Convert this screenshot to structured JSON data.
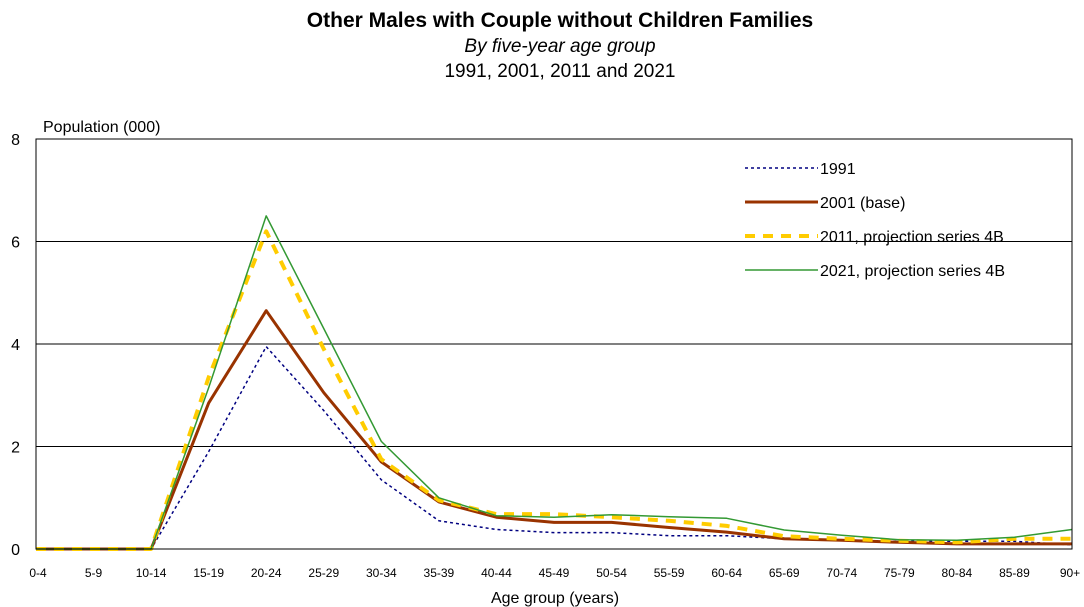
{
  "chart_data": {
    "type": "line",
    "title": "Other Males with Couple without Children Families",
    "subtitle": "By five-year age group",
    "subtitle2": "1991, 2001, 2011 and 2021",
    "xlabel": "Age group (years)",
    "ylabel": "Population (000)",
    "ylim": [
      0,
      8
    ],
    "yticks": [
      "0",
      "2",
      "4",
      "6",
      "8"
    ],
    "grid": "horizontal",
    "legend_position": "top-right",
    "categories": [
      "0-4",
      "5-9",
      "10-14",
      "15-19",
      "20-24",
      "25-29",
      "30-34",
      "35-39",
      "40-44",
      "45-49",
      "50-54",
      "55-59",
      "60-64",
      "65-69",
      "70-74",
      "75-79",
      "80-84",
      "85-89",
      "90+"
    ],
    "series": [
      {
        "name": "1991",
        "color": "#000080",
        "style": "dotted",
        "values": [
          0,
          0,
          0,
          1.9,
          3.95,
          2.7,
          1.35,
          0.55,
          0.38,
          0.32,
          0.32,
          0.26,
          0.26,
          0.2,
          0.17,
          0.15,
          0.15,
          0.15,
          0.08
        ]
      },
      {
        "name": "2001 (base)",
        "color": "#993300",
        "style": "solid-thick",
        "values": [
          0,
          0,
          0,
          2.85,
          4.65,
          3.05,
          1.7,
          0.92,
          0.62,
          0.52,
          0.52,
          0.42,
          0.33,
          0.2,
          0.17,
          0.13,
          0.1,
          0.1,
          0.1
        ]
      },
      {
        "name": "2011, projection series 4B",
        "color": "#FFCC00",
        "style": "dashed-thick",
        "values": [
          0,
          0,
          0,
          3.35,
          6.2,
          3.9,
          1.75,
          0.95,
          0.68,
          0.68,
          0.62,
          0.55,
          0.45,
          0.25,
          0.2,
          0.16,
          0.13,
          0.2,
          0.2
        ]
      },
      {
        "name": "2021, projection series 4B",
        "color": "#339933",
        "style": "solid-thin",
        "values": [
          0,
          0,
          0,
          3.15,
          6.5,
          4.3,
          2.1,
          1.0,
          0.65,
          0.62,
          0.67,
          0.63,
          0.6,
          0.37,
          0.27,
          0.18,
          0.17,
          0.23,
          0.38
        ]
      }
    ]
  }
}
